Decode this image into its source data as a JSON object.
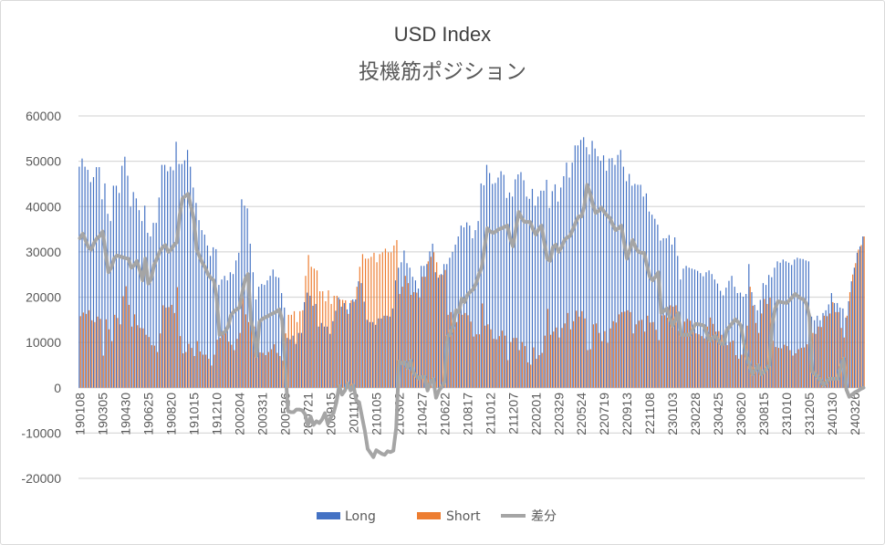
{
  "chart_data": {
    "type": "bar+line",
    "title": "USD Index",
    "subtitle": "投機筋ポジション",
    "xlabel": "",
    "ylabel": "",
    "ylim": [
      -20000,
      60000
    ],
    "yticks": [
      60000,
      50000,
      40000,
      30000,
      20000,
      10000,
      0,
      -10000,
      -20000
    ],
    "ytick_labels": [
      "60000",
      "50000",
      "40000",
      "30000",
      "20000",
      "10000",
      "0",
      "-10000",
      "-20000"
    ],
    "grid": true,
    "legend_position": "bottom",
    "x_tick_every": 8,
    "x_tick_labels": [
      "190108",
      "190305",
      "190430",
      "190625",
      "190820",
      "191015",
      "191210",
      "200204",
      "200331",
      "200526",
      "200721",
      "200915",
      "201110",
      "210105",
      "210302",
      "210427",
      "210622",
      "210817",
      "211012",
      "211207",
      "220201",
      "220329",
      "220524",
      "220719",
      "220913",
      "221108",
      "230103",
      "230228",
      "230425",
      "230620",
      "230815",
      "231010",
      "231205",
      "240130",
      "240326"
    ],
    "series": [
      {
        "name": "Long",
        "type": "bar",
        "color": "#4472C4",
        "values": [
          48800,
          50600,
          48800,
          48100,
          45400,
          46500,
          48700,
          48700,
          41600,
          45100,
          38400,
          36800,
          44600,
          44600,
          43000,
          49000,
          51000,
          46800,
          40000,
          43200,
          41800,
          39200,
          36800,
          40200,
          34200,
          33400,
          36400,
          36400,
          42000,
          49200,
          49200,
          47800,
          48800,
          48000,
          54300,
          49400,
          49400,
          50200,
          52500,
          48800,
          44200,
          40800,
          37000,
          34800,
          33800,
          31400,
          29100,
          31000,
          30600,
          22700,
          23900,
          24700,
          23700,
          25500,
          25100,
          28100,
          29800,
          41600,
          40200,
          39600,
          31800,
          25500,
          19500,
          22300,
          22900,
          22700,
          23700,
          24700,
          26100,
          24500,
          24300,
          20900,
          17700,
          11000,
          10700,
          11500,
          9700,
          12100,
          12100,
          18900,
          21000,
          20300,
          18100,
          18500,
          13500,
          14300,
          13500,
          13500,
          11900,
          14700,
          17000,
          19900,
          17900,
          18700,
          17300,
          18700,
          19500,
          19500,
          23500,
          23100,
          19000,
          15000,
          14500,
          14500,
          13900,
          15300,
          15300,
          15900,
          15900,
          15700,
          17500,
          23700,
          26500,
          27700,
          30300,
          27500,
          26500,
          24500,
          23700,
          21900,
          26900,
          26900,
          27300,
          30100,
          31800,
          25500,
          24300,
          25100,
          27300,
          27300,
          28700,
          30000,
          31600,
          33400,
          35800,
          35400,
          36500,
          35800,
          33000,
          34800,
          36800,
          45100,
          44700,
          49200,
          47400,
          45000,
          45200,
          46400,
          47800,
          47000,
          41900,
          43100,
          42200,
          46000,
          47100,
          47600,
          45800,
          42200,
          41700,
          43900,
          40200,
          42200,
          43500,
          43500,
          45900,
          39700,
          43400,
          44900,
          41100,
          44200,
          46700,
          49700,
          46400,
          49700,
          53500,
          53500,
          54700,
          55300,
          53100,
          51500,
          54500,
          52800,
          51100,
          50100,
          51300,
          47900,
          50600,
          50700,
          49200,
          51400,
          52500,
          48800,
          45600,
          47200,
          44600,
          45000,
          44800,
          44800,
          42200,
          42900,
          38900,
          38200,
          37300,
          36000,
          32500,
          33000,
          33000,
          33700,
          31600,
          33200,
          29100,
          23900,
          26300,
          26900,
          26500,
          26300,
          26100,
          25800,
          25300,
          24600,
          25500,
          25900,
          25100,
          23900,
          23000,
          21400,
          20400,
          22100,
          23600,
          24700,
          22300,
          20900,
          21000,
          20100,
          20700,
          27300,
          21100,
          18300,
          17100,
          19400,
          23100,
          22700,
          24900,
          24400,
          26500,
          27900,
          27600,
          28300,
          27900,
          27600,
          27100,
          28300,
          28700,
          28500,
          28400,
          28100,
          27900,
          15700,
          14900,
          15900,
          14900,
          16500,
          17100,
          18400,
          20900,
          18700,
          18700,
          17700,
          17500,
          15500,
          19100,
          23500,
          26500,
          29800,
          31200,
          33400
        ]
      },
      {
        "name": "Short",
        "type": "bar",
        "color": "#ED7D31",
        "values": [
          15800,
          16600,
          16300,
          17100,
          14900,
          14500,
          15700,
          15200,
          7100,
          15100,
          12900,
          10300,
          16100,
          15400,
          14000,
          20200,
          22400,
          18300,
          13500,
          16200,
          13800,
          13200,
          13100,
          11700,
          11200,
          9400,
          9300,
          7900,
          12000,
          18200,
          17700,
          17800,
          18300,
          16500,
          22200,
          11400,
          7600,
          7900,
          9700,
          8800,
          7000,
          10300,
          8000,
          7300,
          7300,
          6400,
          4900,
          7300,
          10600,
          11000,
          11900,
          12300,
          10200,
          9500,
          8300,
          10800,
          12100,
          20600,
          16200,
          14500,
          16800,
          13500,
          12500,
          7800,
          7700,
          7200,
          7900,
          8500,
          9600,
          7700,
          7000,
          6000,
          12000,
          16100,
          16100,
          16900,
          14500,
          16900,
          17100,
          24700,
          29300,
          26700,
          26300,
          25900,
          21300,
          21300,
          19100,
          21500,
          18500,
          20300,
          20300,
          19500,
          19400,
          19300,
          16300,
          19300,
          19000,
          22300,
          26700,
          29500,
          28500,
          28500,
          28900,
          29800,
          27700,
          29500,
          29900,
          30700,
          29900,
          29900,
          31400,
          32600,
          20700,
          22300,
          24700,
          23100,
          20500,
          21100,
          21000,
          19900,
          24500,
          24500,
          27900,
          28900,
          29900,
          27700,
          24900,
          24900,
          26000,
          16100,
          16700,
          16200,
          14500,
          16700,
          16100,
          16500,
          16000,
          14600,
          11300,
          11800,
          11800,
          18600,
          13700,
          14000,
          12900,
          10800,
          10700,
          11400,
          12600,
          11500,
          6100,
          10100,
          11000,
          11000,
          8300,
          10100,
          9200,
          5600,
          5100,
          8900,
          6400,
          7200,
          7700,
          11500,
          17400,
          11700,
          12400,
          13300,
          11100,
          13200,
          14200,
          16500,
          12900,
          14700,
          17000,
          15700,
          16900,
          15300,
          8300,
          8500,
          14000,
          14200,
          12100,
          10300,
          12500,
          9900,
          13100,
          14700,
          14400,
          16200,
          16700,
          16800,
          17100,
          16700,
          12000,
          14000,
          14800,
          15000,
          12400,
          15900,
          14400,
          14500,
          12800,
          10500,
          16000,
          16000,
          15500,
          18200,
          17900,
          18200,
          12600,
          12200,
          14600,
          15200,
          14800,
          13500,
          12000,
          11800,
          11400,
          10900,
          13500,
          15500,
          14100,
          12400,
          12500,
          11700,
          10700,
          9400,
          10100,
          10400,
          7200,
          6400,
          7300,
          10100,
          13700,
          22300,
          18100,
          14300,
          12100,
          16400,
          19600,
          18500,
          19900,
          10400,
          9000,
          8800,
          8700,
          9500,
          9200,
          8300,
          7100,
          7600,
          8500,
          8800,
          8900,
          9600,
          12200,
          12100,
          11900,
          13500,
          13400,
          15900,
          15800,
          16400,
          18900,
          16700,
          16700,
          13200,
          11100,
          15900,
          21100,
          25000,
          27500,
          30500,
          31500,
          33400
        ]
      },
      {
        "name": "差分",
        "type": "line",
        "color": "#A5A5A5",
        "values": [
          33000,
          34000,
          32500,
          31000,
          30500,
          32000,
          33000,
          33500,
          34500,
          30000,
          25500,
          26500,
          28500,
          29200,
          29000,
          28800,
          28600,
          28500,
          26500,
          27000,
          28000,
          26000,
          23700,
          28500,
          23000,
          24000,
          27100,
          28500,
          30000,
          31000,
          31500,
          30000,
          30500,
          31500,
          32100,
          38000,
          41800,
          42300,
          42800,
          40000,
          37200,
          30500,
          29000,
          27500,
          26500,
          25000,
          24200,
          23700,
          20000,
          11700,
          12000,
          12400,
          13500,
          16000,
          16800,
          17300,
          17700,
          21000,
          24000,
          25100,
          15000,
          12000,
          7000,
          14500,
          15200,
          15500,
          15800,
          16200,
          16500,
          16800,
          17300,
          14900,
          5700,
          -5100,
          -5400,
          -5400,
          -4800,
          -4800,
          -5000,
          -5800,
          -8300,
          -6400,
          -8200,
          -7400,
          -7800,
          -7000,
          -5600,
          -8000,
          -6600,
          -5600,
          -3300,
          400,
          -1500,
          -600,
          1000,
          -600,
          500,
          -2800,
          -3200,
          -6400,
          -9500,
          -13500,
          -14400,
          -15300,
          -13800,
          -14200,
          -14600,
          -14800,
          -14000,
          -14200,
          -13900,
          -8900,
          5800,
          5400,
          5600,
          4400,
          6000,
          3400,
          2700,
          2000,
          2400,
          2400,
          -600,
          1200,
          1900,
          -2200,
          -600,
          200,
          1300,
          11200,
          12000,
          13800,
          17100,
          16700,
          19700,
          18900,
          20500,
          21200,
          21700,
          23000,
          25000,
          26500,
          31000,
          35200,
          34500,
          34200,
          34500,
          35000,
          35200,
          35500,
          35800,
          33000,
          31200,
          35000,
          38800,
          37500,
          36600,
          36600,
          36600,
          35000,
          33800,
          35000,
          35800,
          32000,
          28500,
          28000,
          31000,
          31600,
          30000,
          31000,
          32500,
          33200,
          33500,
          35000,
          36500,
          37800,
          37800,
          40000,
          44800,
          43000,
          40500,
          38600,
          39000,
          39800,
          38800,
          38000,
          37500,
          36000,
          34800,
          35200,
          35800,
          32000,
          28500,
          30500,
          32600,
          31000,
          30000,
          29800,
          29800,
          27000,
          24500,
          23700,
          24500,
          25500,
          16500,
          17000,
          17500,
          15500,
          13700,
          15000,
          16500,
          11700,
          11700,
          11700,
          11700,
          12800,
          14100,
          14000,
          13900,
          13700,
          12000,
          10400,
          11000,
          11500,
          10500,
          9700,
          9700,
          12700,
          13500,
          14300,
          15100,
          14500,
          13700,
          10000,
          7000,
          5000,
          3000,
          4000,
          5000,
          3000,
          3500,
          4200,
          5000,
          14000,
          17500,
          19100,
          18900,
          18800,
          18700,
          19300,
          20000,
          20700,
          20200,
          19700,
          19500,
          18500,
          15700,
          3600,
          3000,
          2400,
          1500,
          600,
          1300,
          2000,
          2000,
          2000,
          2000,
          4500,
          6400,
          -400,
          -2000,
          -1500,
          -1000,
          -700,
          -300,
          0
        ]
      }
    ]
  }
}
